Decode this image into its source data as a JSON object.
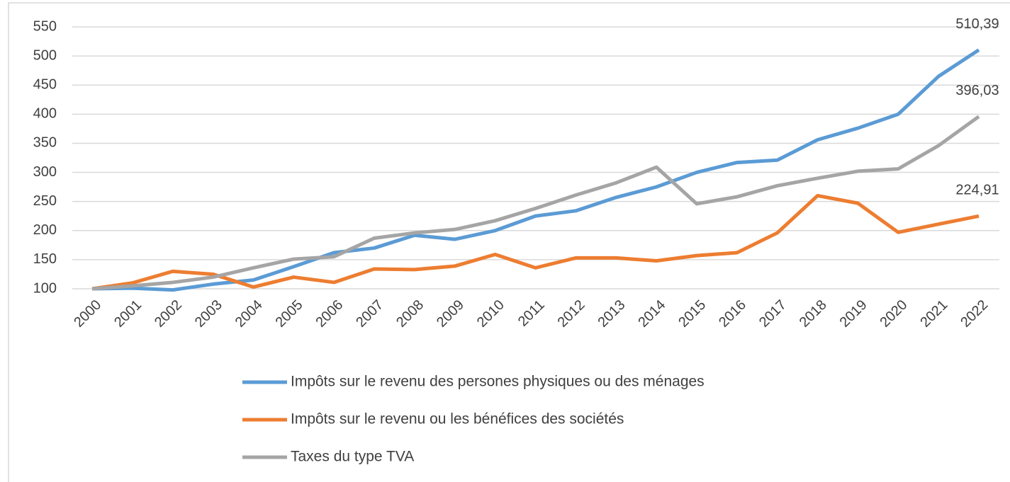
{
  "chart_data": {
    "type": "line",
    "categories": [
      "2000",
      "2001",
      "2002",
      "2003",
      "2004",
      "2005",
      "2006",
      "2007",
      "2008",
      "2009",
      "2010",
      "2011",
      "2012",
      "2013",
      "2014",
      "2015",
      "2016",
      "2017",
      "2018",
      "2019",
      "2020",
      "2021",
      "2022"
    ],
    "series": [
      {
        "name": "Impôts sur le revenu des persones physiques ou des ménages",
        "color": "#5b9bd5",
        "values": [
          100,
          101,
          98,
          108,
          115,
          138,
          162,
          170,
          192,
          185,
          200,
          225,
          234,
          257,
          275,
          300,
          317,
          321,
          356,
          376,
          400,
          465,
          510.39
        ],
        "value_labels": [
          null,
          null,
          null,
          null,
          null,
          null,
          null,
          null,
          null,
          null,
          null,
          null,
          null,
          null,
          null,
          null,
          null,
          null,
          null,
          null,
          null,
          null,
          "510,39"
        ]
      },
      {
        "name": "Impôts sur le revenu ou les bénéfices des sociétés",
        "color": "#ed7d31",
        "values": [
          100,
          110,
          130,
          125,
          103,
          120,
          111,
          134,
          133,
          139,
          159,
          136,
          153,
          153,
          148,
          157,
          162,
          196,
          260,
          247,
          197,
          211,
          224.91
        ],
        "value_labels": [
          null,
          null,
          null,
          null,
          null,
          null,
          null,
          null,
          null,
          null,
          null,
          null,
          null,
          null,
          null,
          null,
          null,
          null,
          null,
          null,
          null,
          null,
          "224,91"
        ]
      },
      {
        "name": "Taxes du type TVA",
        "color": "#a5a5a5",
        "values": [
          100,
          105,
          111,
          120,
          136,
          151,
          155,
          187,
          196,
          202,
          217,
          238,
          261,
          282,
          309,
          246,
          258,
          277,
          290,
          302,
          306,
          346,
          396.03
        ],
        "value_labels": [
          null,
          null,
          null,
          null,
          null,
          null,
          null,
          null,
          null,
          null,
          null,
          null,
          null,
          null,
          null,
          null,
          null,
          null,
          null,
          null,
          null,
          null,
          "396,03"
        ]
      }
    ],
    "ylim": [
      100,
      550
    ],
    "yticks": [
      100,
      150,
      200,
      250,
      300,
      350,
      400,
      450,
      500,
      550
    ],
    "grid": true,
    "legend": "bottom"
  }
}
